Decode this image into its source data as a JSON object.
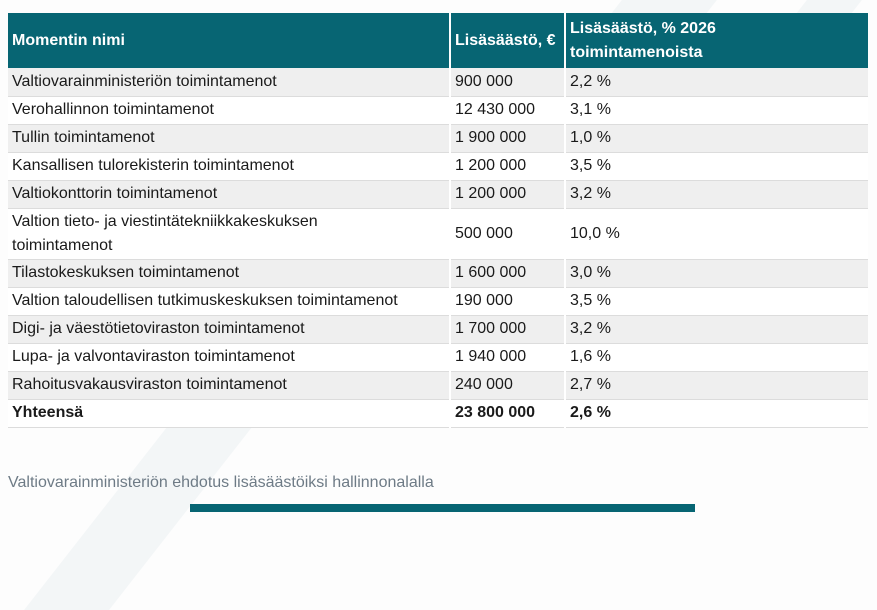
{
  "caption": "Valtiovarainministeriön ehdotus lisäsäästöiksi hallinnonalalla",
  "colors": {
    "header_bg": "#076573",
    "header_text": "#ffffff",
    "row_alt_bg": "#efefef",
    "row_bg": "#ffffff",
    "body_text": "#1a1a1a",
    "caption_text": "#6e7b86",
    "row_border": "#dcdcdc",
    "accent_bar": "#076573"
  },
  "table": {
    "columns": [
      "Momentin nimi",
      "Lisäsäästö, €",
      "Lisäsäästö, % 2026 toimintamenoista"
    ],
    "rows": [
      {
        "name": "Valtiovarainministeriön toimintamenot",
        "amount": "900 000",
        "percent": "2,2 %"
      },
      {
        "name": "Verohallinnon toimintamenot",
        "amount": "12 430 000",
        "percent": "3,1 %"
      },
      {
        "name": "Tullin toimintamenot",
        "amount": "1 900 000",
        "percent": "1,0 %"
      },
      {
        "name": "Kansallisen tulorekisterin toimintamenot",
        "amount": "1 200 000",
        "percent": "3,5 %"
      },
      {
        "name": "Valtiokonttorin toimintamenot",
        "amount": "1 200 000",
        "percent": "3,2 %"
      },
      {
        "name": "Valtion tieto- ja viestintätekniikkakeskuksen toimintamenot",
        "amount": "500 000",
        "percent": "10,0 %"
      },
      {
        "name": "Tilastokeskuksen toimintamenot",
        "amount": "1 600 000",
        "percent": "3,0 %"
      },
      {
        "name": "Valtion taloudellisen tutkimuskeskuksen toimintamenot",
        "amount": "190 000",
        "percent": "3,5 %"
      },
      {
        "name": "Digi- ja väestötietoviraston toimintamenot",
        "amount": "1 700 000",
        "percent": "3,2 %"
      },
      {
        "name": "Lupa- ja valvontaviraston toimintamenot",
        "amount": "1 940 000",
        "percent": "1,6 %"
      },
      {
        "name": "Rahoitusvakausviraston toimintamenot",
        "amount": "240 000",
        "percent": "2,7 %"
      },
      {
        "name": "Yhteensä",
        "amount": "23 800 000",
        "percent": "2,6 %",
        "bold": true
      }
    ]
  },
  "chart_data": {
    "type": "table",
    "title": "Valtiovarainministeriön ehdotus lisäsäästöiksi hallinnonalalla",
    "columns": [
      "Momentin nimi",
      "Lisäsäästö, €",
      "Lisäsäästö, % 2026 toimintamenoista"
    ],
    "categories": [
      "Valtiovarainministeriön toimintamenot",
      "Verohallinnon toimintamenot",
      "Tullin toimintamenot",
      "Kansallisen tulorekisterin toimintamenot",
      "Valtiokonttorin toimintamenot",
      "Valtion tieto- ja viestintätekniikkakeskuksen toimintamenot",
      "Tilastokeskuksen toimintamenot",
      "Valtion taloudellisen tutkimuskeskuksen toimintamenot",
      "Digi- ja väestötietoviraston toimintamenot",
      "Lupa- ja valvontaviraston toimintamenot",
      "Rahoitusvakausviraston toimintamenot",
      "Yhteensä"
    ],
    "series": [
      {
        "name": "Lisäsäästö, €",
        "values": [
          900000,
          12430000,
          1900000,
          1200000,
          1200000,
          500000,
          1600000,
          190000,
          1700000,
          1940000,
          240000,
          23800000
        ]
      },
      {
        "name": "Lisäsäästö, % 2026 toimintamenoista",
        "values": [
          2.2,
          3.1,
          1.0,
          3.5,
          3.2,
          10.0,
          3.0,
          3.5,
          3.2,
          1.6,
          2.7,
          2.6
        ]
      }
    ]
  }
}
